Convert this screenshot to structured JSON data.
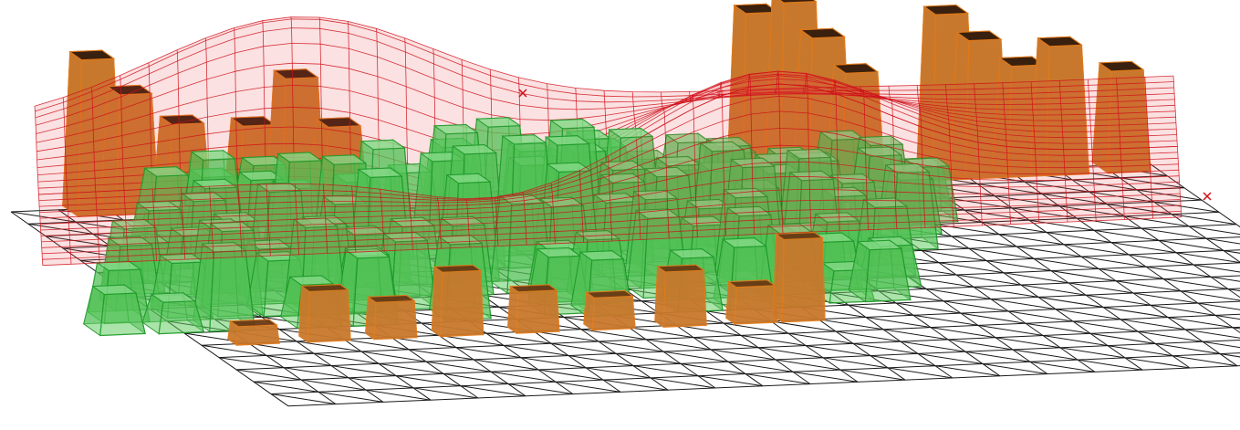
{
  "scene": {
    "description_layers": [
      "triangular-ground-grid",
      "orange-columns",
      "green-columns",
      "red-wireframe-surface"
    ],
    "colors": {
      "background": "#ffffff",
      "grid_line": "#1a1a1a",
      "orange_face": "#c8782c",
      "orange_dark": "#4a2a14",
      "orange_edge": "#e07818",
      "green_fill": "#5ccc5c",
      "green_edge": "#1f9a2a",
      "red_fill": "#e8464c",
      "red_line": "#d0101a"
    },
    "icons": [
      "triangle-grid",
      "tapered-prism-orange",
      "tapered-prism-green",
      "wireframe-mesh"
    ]
  }
}
